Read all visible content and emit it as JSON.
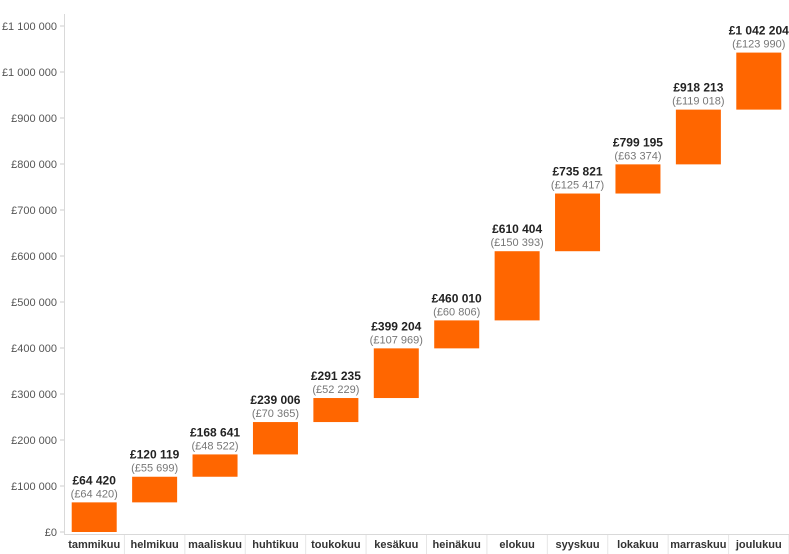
{
  "chart_data": {
    "type": "bar",
    "subtype": "waterfall",
    "title": "",
    "xlabel": "",
    "ylabel": "",
    "ylim": [
      0,
      1100000
    ],
    "grid": false,
    "bar_color": "#ff6600",
    "y_ticks": [
      {
        "value": 0,
        "label": "£0"
      },
      {
        "value": 100000,
        "label": "£100 000"
      },
      {
        "value": 200000,
        "label": "£200 000"
      },
      {
        "value": 300000,
        "label": "£300 000"
      },
      {
        "value": 400000,
        "label": "£400 000"
      },
      {
        "value": 500000,
        "label": "£500 000"
      },
      {
        "value": 600000,
        "label": "£600 000"
      },
      {
        "value": 700000,
        "label": "£700 000"
      },
      {
        "value": 800000,
        "label": "£800 000"
      },
      {
        "value": 900000,
        "label": "£900 000"
      },
      {
        "value": 1000000,
        "label": "£1 000 000"
      },
      {
        "value": 1100000,
        "label": "£1 100 000"
      }
    ],
    "categories": [
      "tammikuu",
      "helmikuu",
      "maaliskuu",
      "huhtikuu",
      "toukokuu",
      "kesäkuu",
      "heinäkuu",
      "elokuu",
      "syyskuu",
      "lokakuu",
      "marraskuu",
      "joulukuu"
    ],
    "values": [
      64420,
      55699,
      48522,
      70365,
      52229,
      107969,
      60806,
      150393,
      125417,
      63374,
      119018,
      123990
    ],
    "cumulative": [
      64420,
      120119,
      168641,
      239006,
      291235,
      399204,
      460010,
      610404,
      735821,
      799195,
      918213,
      1042204
    ],
    "total_labels": [
      "£64 420",
      "£120 119",
      "£168 641",
      "£239 006",
      "£291 235",
      "£399 204",
      "£460 010",
      "£610 404",
      "£735 821",
      "£799 195",
      "£918 213",
      "£1 042 204"
    ],
    "delta_labels": [
      "(£64 420)",
      "(£55 699)",
      "(£48 522)",
      "(£70 365)",
      "(£52 229)",
      "(£107 969)",
      "(£60 806)",
      "(£150 393)",
      "(£125 417)",
      "(£63 374)",
      "(£119 018)",
      "(£123 990)"
    ]
  }
}
